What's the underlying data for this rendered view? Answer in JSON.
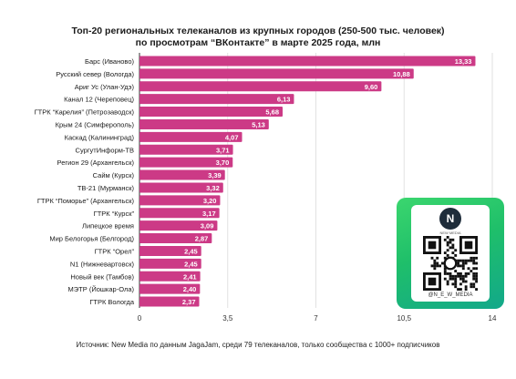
{
  "title_lines": [
    "Топ-20 региональных телеканалов из крупных городов (250-500 тыс. человек)",
    "по просмотрам “ВКонтакте” в марте 2025 года, млн"
  ],
  "source": "Источник: New Media по данным JagaJam, среди 79 телеканалов, только сообщества с 1000+ подписчиков",
  "qr_card": {
    "logo_text": "N",
    "logo_sub": "NEW MEDIA",
    "label": "@N_E_W_MEDIA"
  },
  "colors": {
    "bar": "#cc3a86",
    "grid": "#e2e2e2",
    "axis": "#333333",
    "label_bg": "#cc3a86"
  },
  "chart_data": {
    "type": "bar",
    "orientation": "horizontal",
    "categories": [
      "Барс (Иваново)",
      "Русский север (Вологда)",
      "Ариг Ус (Улан-Удэ)",
      "Канал 12 (Череповец)",
      "ГТРК “Карелия” (Петрозаводск)",
      "Крым 24 (Симферополь)",
      "Каскад (Калининград)",
      "СургутИнформ-ТВ",
      "Регион 29 (Архангельск)",
      "Сайм (Курск)",
      "ТВ-21 (Мурманск)",
      "ГТРК “Поморье” (Архангельск)",
      "ГТРК “Курск”",
      "Липецкое время",
      "Мир Белогорья (Белгород)",
      "ГТРК “Орел”",
      "N1 (Нижневартовск)",
      "Новый век (Тамбов)",
      "МЭТР (Йошкар-Ола)",
      "ГТРК Вологда"
    ],
    "values": [
      13.33,
      10.88,
      9.6,
      6.13,
      5.68,
      5.13,
      4.07,
      3.71,
      3.7,
      3.39,
      3.32,
      3.2,
      3.17,
      3.09,
      2.87,
      2.45,
      2.45,
      2.41,
      2.4,
      2.37
    ],
    "value_labels": [
      "13,33",
      "10,88",
      "9,60",
      "6,13",
      "5,68",
      "5,13",
      "4,07",
      "3,71",
      "3,70",
      "3,39",
      "3,32",
      "3,20",
      "3,17",
      "3,09",
      "2,87",
      "2,45",
      "2,45",
      "2,41",
      "2,40",
      "2,37"
    ],
    "xlim": [
      0,
      14
    ],
    "xticks": [
      0,
      3.5,
      7,
      10.5,
      14
    ],
    "xtick_labels": [
      "0",
      "3,5",
      "7",
      "10,5",
      "14"
    ],
    "grid": true,
    "legend": "none"
  }
}
